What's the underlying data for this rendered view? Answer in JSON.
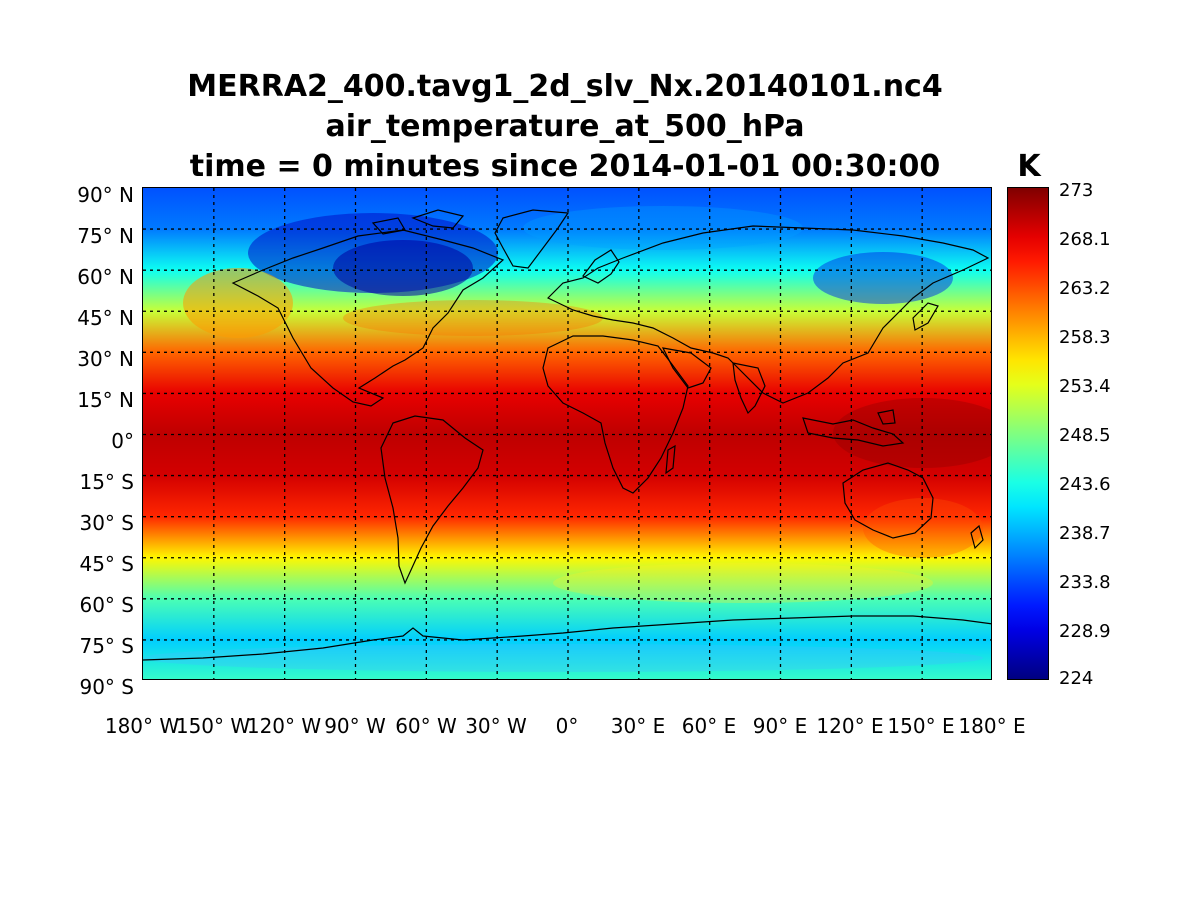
{
  "title": {
    "line1": "MERRA2_400.tavg1_2d_slv_Nx.20140101.nc4",
    "line2": "air_temperature_at_500_hPa",
    "line3": "time = 0 minutes since 2014-01-01 00:30:00"
  },
  "map": {
    "type": "heatmap",
    "projection": "equirectangular",
    "lon_range": [
      -180,
      180
    ],
    "lat_range": [
      -90,
      90
    ],
    "grid": true,
    "lat_ticks": [
      "90° N",
      "75° N",
      "60° N",
      "45° N",
      "30° N",
      "15° N",
      "0°",
      "15° S",
      "30° S",
      "45° S",
      "60° S",
      "75° S",
      "90° S"
    ],
    "lon_ticks": [
      "180° W",
      "150° W",
      "120° W",
      "90° W",
      "60° W",
      "30° W",
      "0°",
      "30° E",
      "60° E",
      "90° E",
      "120° E",
      "150° E",
      "180° E"
    ],
    "approx_zonal_temperature_K": [
      {
        "lat": 90,
        "t": 234
      },
      {
        "lat": 75,
        "t": 236
      },
      {
        "lat": 60,
        "t": 243
      },
      {
        "lat": 45,
        "t": 252
      },
      {
        "lat": 30,
        "t": 262
      },
      {
        "lat": 15,
        "t": 268
      },
      {
        "lat": 0,
        "t": 270
      },
      {
        "lat": -15,
        "t": 269
      },
      {
        "lat": -30,
        "t": 265
      },
      {
        "lat": -45,
        "t": 255
      },
      {
        "lat": -60,
        "t": 246
      },
      {
        "lat": -75,
        "t": 240
      },
      {
        "lat": -90,
        "t": 245
      }
    ]
  },
  "colorbar": {
    "label": "K",
    "min": 224,
    "max": 273,
    "colormap": "jet",
    "ticks": [
      "273",
      "268.1",
      "263.2",
      "258.3",
      "253.4",
      "248.5",
      "243.6",
      "238.7",
      "233.8",
      "228.9",
      "224"
    ]
  }
}
